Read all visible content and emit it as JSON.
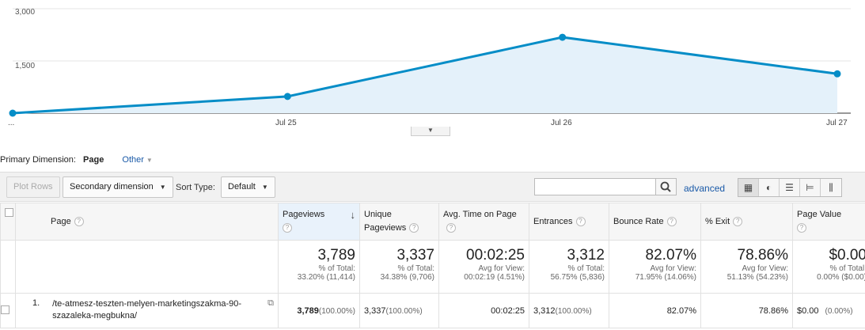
{
  "chart": {
    "y_ticks": [
      "3,000",
      "1,500"
    ],
    "x_start_label": "...",
    "x_ticks": [
      "Jul 25",
      "Jul 26",
      "Jul 27"
    ],
    "series_color": "#058dc7"
  },
  "chart_data": {
    "type": "area",
    "x": [
      "Jul 24",
      "Jul 25",
      "Jul 26",
      "Jul 27"
    ],
    "series": [
      {
        "values": [
          0,
          480,
          2180,
          1130
        ]
      }
    ],
    "ylim": [
      0,
      3000
    ],
    "grid": true
  },
  "dimension": {
    "label": "Primary Dimension:",
    "active": "Page",
    "other": "Other"
  },
  "toolbar": {
    "plot_rows": "Plot Rows",
    "secondary_dimension": "Secondary dimension",
    "sort_type_label": "Sort Type:",
    "sort_type_value": "Default",
    "search_placeholder": "",
    "advanced": "advanced"
  },
  "table": {
    "headers": {
      "page": "Page",
      "pageviews": "Pageviews",
      "unique_pageviews": "Unique Pageviews",
      "avg_time": "Avg. Time on Page",
      "entrances": "Entrances",
      "bounce_rate": "Bounce Rate",
      "exit": "% Exit",
      "page_value": "Page Value"
    },
    "totals": {
      "pageviews": {
        "value": "3,789",
        "line1": "% of Total:",
        "line2": "33.20% (11,414)"
      },
      "unique_pageviews": {
        "value": "3,337",
        "line1": "% of Total:",
        "line2": "34.38% (9,706)"
      },
      "avg_time": {
        "value": "00:02:25",
        "line1": "Avg for View:",
        "line2": "00:02:19 (4.51%)"
      },
      "entrances": {
        "value": "3,312",
        "line1": "% of Total:",
        "line2": "56.75% (5,836)"
      },
      "bounce_rate": {
        "value": "82.07%",
        "line1": "Avg for View:",
        "line2": "71.95% (14.06%)"
      },
      "exit": {
        "value": "78.86%",
        "line1": "Avg for View:",
        "line2": "51.13% (54.23%)"
      },
      "page_value": {
        "value": "$0.00",
        "line1": "% of Total:",
        "line2": "0.00% ($0.00)"
      }
    },
    "rows": [
      {
        "index": "1.",
        "page": "/te-atmesz-teszten-melyen-marketingszakma-90-szazaleka-megbukna/",
        "pageviews": "3,789",
        "pageviews_pct": "(100.00%)",
        "unique_pageviews": "3,337",
        "unique_pct": "(100.00%)",
        "avg_time": "00:02:25",
        "entrances": "3,312",
        "entrances_pct": "(100.00%)",
        "bounce_rate": "82.07%",
        "exit": "78.86%",
        "page_value": "$0.00",
        "page_value_pct": "(0.00%)"
      }
    ]
  }
}
